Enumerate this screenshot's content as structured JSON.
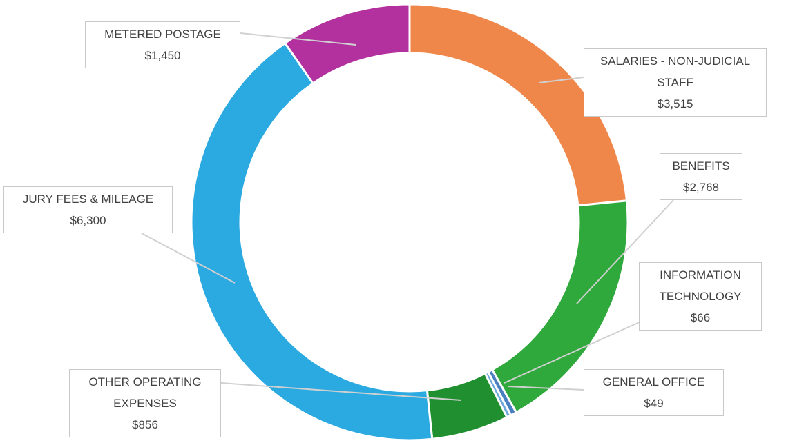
{
  "chart_data": {
    "type": "donut",
    "categories": [
      "SALARIES - NON-JUDICIAL STAFF",
      "BENEFITS",
      "INFORMATION TECHNOLOGY",
      "GENERAL OFFICE",
      "OTHER OPERATING EXPENSES",
      "JURY FEES & MILEAGE",
      "METERED POSTAGE"
    ],
    "values": [
      3515,
      2768,
      66,
      49,
      856,
      6300,
      1450
    ],
    "value_labels": [
      "$3,515",
      "$2,768",
      "$66",
      "$49",
      "$856",
      "$6,300",
      "$1,450"
    ],
    "colors": [
      "#f0874a",
      "#2fa83c",
      "#4a7fc1",
      "#6fa8dc",
      "#1f8f2f",
      "#2ba9e1",
      "#b3309f"
    ]
  }
}
